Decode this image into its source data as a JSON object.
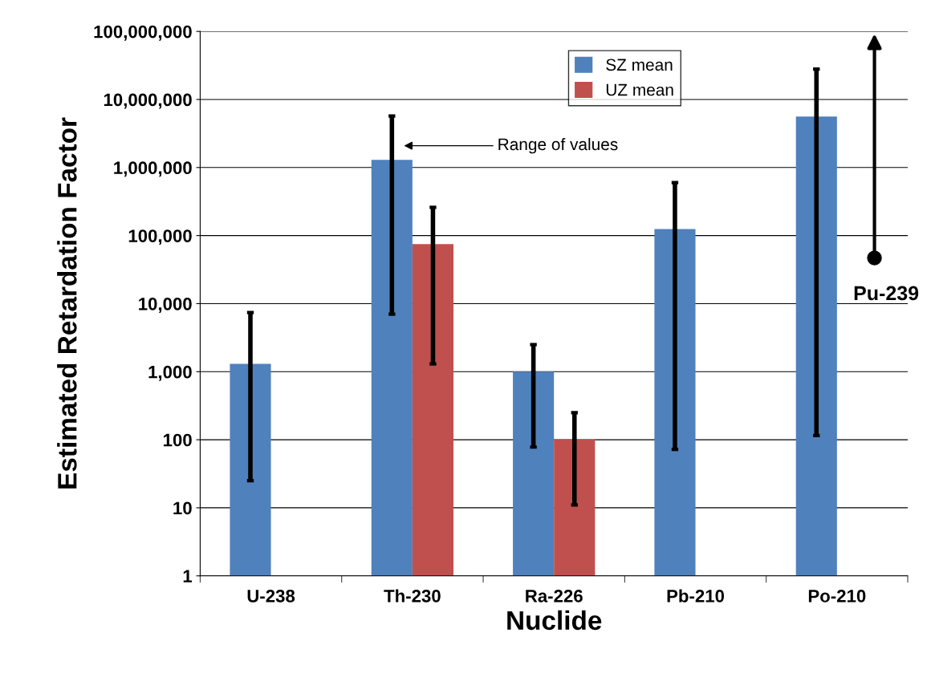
{
  "chart_data": {
    "type": "bar",
    "xlabel": "Nuclide",
    "ylabel": "Estimated Retardation Factor",
    "categories": [
      "U-238",
      "Th-230",
      "Ra-226",
      "Pb-210",
      "Po-210"
    ],
    "series": [
      {
        "name": "SZ mean",
        "color": "#4f81bd",
        "values": [
          1300,
          1300000,
          1000,
          125000,
          5600000
        ],
        "errors": [
          [
            25,
            7400
          ],
          [
            7000,
            5700000
          ],
          [
            78,
            2500
          ],
          [
            72,
            600000
          ],
          [
            115,
            28000000
          ]
        ]
      },
      {
        "name": "UZ mean",
        "color": "#c0504d",
        "values": [
          null,
          75000,
          100,
          null,
          null
        ],
        "errors": [
          null,
          [
            1300,
            260000
          ],
          [
            11,
            250
          ],
          null,
          null
        ]
      },
      {
        "type": "scatter",
        "color": "#000000",
        "values": [
          null,
          null,
          null,
          null,
          47000
        ]
      }
    ],
    "log": "y",
    "ylim": [
      1,
      100000000
    ],
    "yticks": [
      {
        "value": 1,
        "label": "1"
      },
      {
        "value": 10,
        "label": "10"
      },
      {
        "value": 100,
        "label": "100"
      },
      {
        "value": 1000,
        "label": "1,000"
      },
      {
        "value": 10000,
        "label": "10,000"
      },
      {
        "value": 100000,
        "label": "100,000"
      },
      {
        "value": 1000000,
        "label": "1,000,000"
      },
      {
        "value": 10000000,
        "label": "10,000,000"
      },
      {
        "value": 100000000,
        "label": "100,000,000"
      }
    ],
    "grid": "y",
    "legend": "top",
    "annotations": [
      "Range of values",
      {
        "text": "Pu-239",
        "x": "Po-210",
        "y": 47000
      }
    ]
  }
}
